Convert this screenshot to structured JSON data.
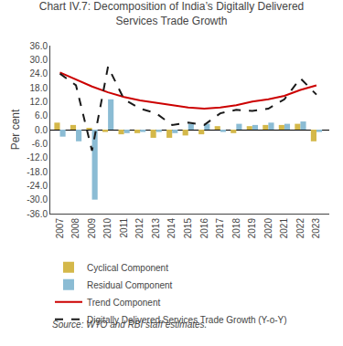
{
  "chart_data": {
    "type": "bar",
    "title": "Chart IV.7: Decomposition of India’s Digitally Delivered\nServices Trade Growth",
    "ylabel": "Per cent",
    "annotations": [
      "Source: WTO and RBI staff estimates."
    ],
    "x": [
      2007,
      2008,
      2009,
      2010,
      2011,
      2012,
      2013,
      2014,
      2015,
      2016,
      2017,
      2018,
      2019,
      2020,
      2021,
      2022,
      2023
    ],
    "xlim": [
      2006.4,
      2023.8
    ],
    "xticks": [
      2007,
      2008,
      2009,
      2010,
      2011,
      2012,
      2013,
      2014,
      2015,
      2016,
      2017,
      2018,
      2019,
      2020,
      2021,
      2022,
      2023
    ],
    "ylim": [
      -36.0,
      36.0
    ],
    "yticks": [
      {
        "value": -36.0,
        "label": "-36.0"
      },
      {
        "value": -30.0,
        "label": "-30.0"
      },
      {
        "value": -24.0,
        "label": "-24.0"
      },
      {
        "value": -18.0,
        "label": "-18.0"
      },
      {
        "value": -12.0,
        "label": "-12.0"
      },
      {
        "value": -6.0,
        "label": "-6.0"
      },
      {
        "value": 0.0,
        "label": "0.0"
      },
      {
        "value": 6.0,
        "label": "6.0"
      },
      {
        "value": 12.0,
        "label": "12.0"
      },
      {
        "value": 18.0,
        "label": "18.0"
      },
      {
        "value": 24.0,
        "label": "24.0"
      },
      {
        "value": 30.0,
        "label": "30.0"
      },
      {
        "value": 36.0,
        "label": "36.0"
      }
    ],
    "grid": false,
    "legend": "bottom",
    "series": [
      {
        "name": "Cyclical Component",
        "type": "bar",
        "color": "#d4b84a",
        "values": [
          3.0,
          2.0,
          0.5,
          -1.0,
          -2.0,
          -1.5,
          -3.5,
          -3.5,
          -2.5,
          -2.0,
          1.5,
          -1.5,
          1.5,
          2.0,
          2.0,
          2.5,
          -5.0
        ]
      },
      {
        "name": "Residual Component",
        "type": "bar",
        "color": "#8bbcd4",
        "values": [
          -3.0,
          -5.0,
          -30.0,
          13.0,
          -1.5,
          -1.0,
          -1.0,
          -1.5,
          2.5,
          2.5,
          -1.0,
          2.5,
          2.0,
          3.0,
          2.5,
          3.5,
          -1.0
        ]
      },
      {
        "name": "Trend Component",
        "type": "line",
        "color": "#cc0000",
        "line_style": "solid",
        "values": [
          24.5,
          21.5,
          18.5,
          16.0,
          14.0,
          12.5,
          11.5,
          10.5,
          9.5,
          9.0,
          9.5,
          10.5,
          12.0,
          13.0,
          14.5,
          17.0,
          19.0
        ]
      },
      {
        "name": "Digitally Delivered Services Trade Growth (Y-o-Y)",
        "type": "line",
        "color": "#1a1a1a",
        "line_style": "dashed",
        "values": [
          24.0,
          19.0,
          -9.0,
          27.0,
          13.0,
          9.0,
          7.0,
          2.0,
          3.0,
          2.0,
          7.0,
          8.5,
          8.0,
          9.0,
          13.0,
          22.0,
          15.0
        ]
      }
    ]
  }
}
